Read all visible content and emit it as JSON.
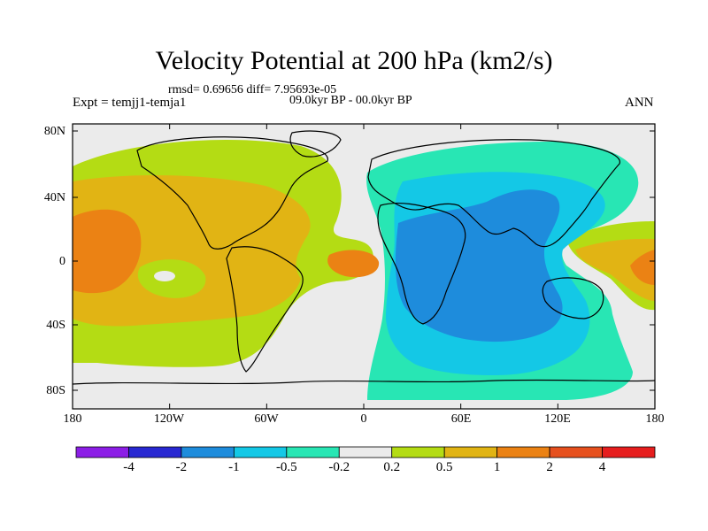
{
  "title": "Velocity Potential at 200 hPa (km2/s)",
  "stats": "rmsd= 0.69656 diff= 7.95693e-05",
  "experiment": "Expt = temjj1-temja1",
  "period": "09.0kyr BP - 00.0kyr BP",
  "season": "ANN",
  "lat_labels": [
    "80N",
    "40N",
    "0",
    "40S",
    "80S"
  ],
  "lon_labels": [
    "180",
    "120W",
    "60W",
    "0",
    "60E",
    "120E",
    "180"
  ],
  "colorbar": {
    "colors": [
      "#8c1ee6",
      "#2828d2",
      "#1e8cdc",
      "#14c8e6",
      "#28e6b4",
      "#ebebeb",
      "#b4dc14",
      "#e1b414",
      "#eb8214",
      "#e6501e",
      "#e61e1e"
    ],
    "labels": [
      "-4",
      "-2",
      "-1",
      "-0.5",
      "-0.2",
      "0.2",
      "0.5",
      "1",
      "2",
      "4"
    ]
  },
  "colors": {
    "neutral": "#ebebeb",
    "pos_light": "#b4dc14",
    "pos_mid": "#e1b414",
    "pos_strong": "#eb8214",
    "neg_light": "#28e6b4",
    "neg_mid": "#14c8e6",
    "neg_strong": "#1e8cdc"
  }
}
